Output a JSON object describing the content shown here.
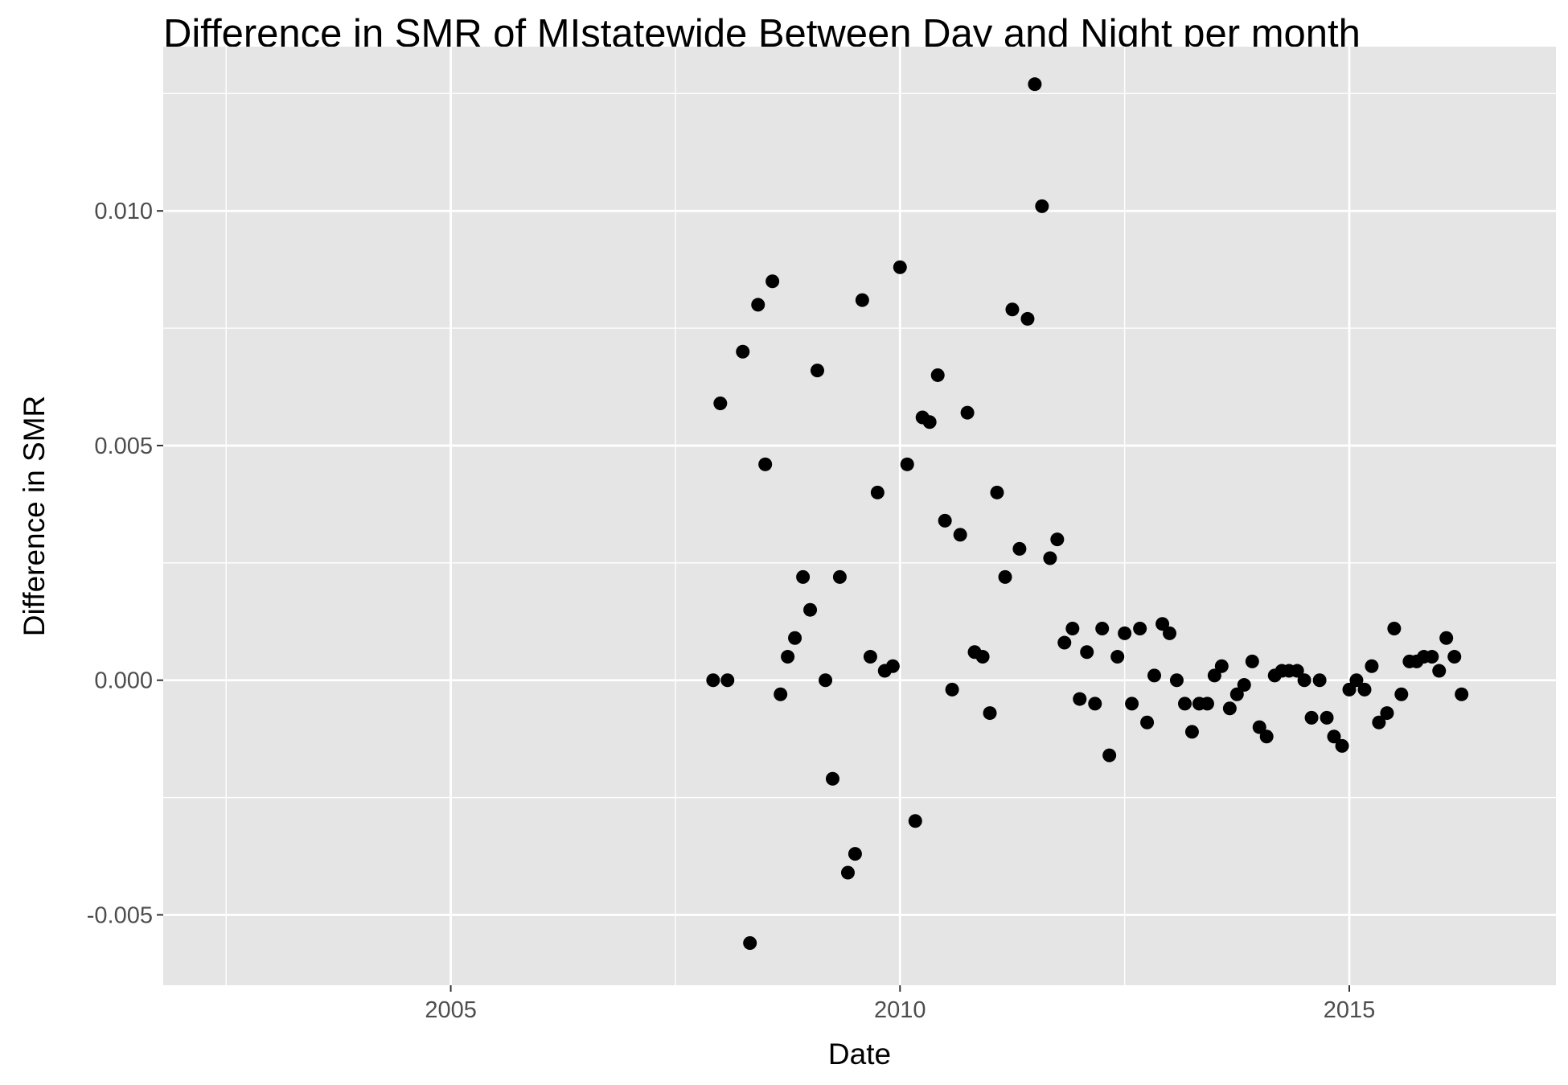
{
  "chart_data": {
    "type": "scatter",
    "title": "Difference in SMR of MIstatewide Between Day and Night per month",
    "xlabel": "Date",
    "ylabel": "Difference in SMR",
    "xlim": [
      2001.8,
      2017.3
    ],
    "ylim": [
      -0.0065,
      0.0135
    ],
    "x_ticks": [
      2005,
      2010,
      2015
    ],
    "x_tick_labels": [
      "2005",
      "2010",
      "2015"
    ],
    "y_ticks": [
      -0.005,
      0.0,
      0.005,
      0.01
    ],
    "y_tick_labels": [
      "-0.005",
      "0.000",
      "0.005",
      "0.010"
    ],
    "grid": true,
    "background": "#e5e5e5",
    "point_color": "#000000",
    "points": [
      {
        "x": 2007.92,
        "y": 0.0
      },
      {
        "x": 2008.0,
        "y": 0.0059
      },
      {
        "x": 2008.08,
        "y": 0.0
      },
      {
        "x": 2008.25,
        "y": 0.007
      },
      {
        "x": 2008.33,
        "y": -0.0056
      },
      {
        "x": 2008.42,
        "y": 0.008
      },
      {
        "x": 2008.5,
        "y": 0.0046
      },
      {
        "x": 2008.58,
        "y": 0.0085
      },
      {
        "x": 2008.67,
        "y": -0.0003
      },
      {
        "x": 2008.75,
        "y": 0.0005
      },
      {
        "x": 2008.83,
        "y": 0.0009
      },
      {
        "x": 2008.92,
        "y": 0.0022
      },
      {
        "x": 2009.0,
        "y": 0.0015
      },
      {
        "x": 2009.08,
        "y": 0.0066
      },
      {
        "x": 2009.17,
        "y": 0.0
      },
      {
        "x": 2009.25,
        "y": -0.0021
      },
      {
        "x": 2009.33,
        "y": 0.0022
      },
      {
        "x": 2009.42,
        "y": -0.0041
      },
      {
        "x": 2009.5,
        "y": -0.0037
      },
      {
        "x": 2009.58,
        "y": 0.0081
      },
      {
        "x": 2009.67,
        "y": 0.0005
      },
      {
        "x": 2009.75,
        "y": 0.004
      },
      {
        "x": 2009.83,
        "y": 0.0002
      },
      {
        "x": 2009.92,
        "y": 0.0003
      },
      {
        "x": 2010.0,
        "y": 0.0088
      },
      {
        "x": 2010.08,
        "y": 0.0046
      },
      {
        "x": 2010.17,
        "y": -0.003
      },
      {
        "x": 2010.25,
        "y": 0.0056
      },
      {
        "x": 2010.33,
        "y": 0.0055
      },
      {
        "x": 2010.42,
        "y": 0.0065
      },
      {
        "x": 2010.5,
        "y": 0.0034
      },
      {
        "x": 2010.58,
        "y": -0.0002
      },
      {
        "x": 2010.67,
        "y": 0.0031
      },
      {
        "x": 2010.75,
        "y": 0.0057
      },
      {
        "x": 2010.83,
        "y": 0.0006
      },
      {
        "x": 2010.92,
        "y": 0.0005
      },
      {
        "x": 2011.0,
        "y": -0.0007
      },
      {
        "x": 2011.08,
        "y": 0.004
      },
      {
        "x": 2011.17,
        "y": 0.0022
      },
      {
        "x": 2011.25,
        "y": 0.0079
      },
      {
        "x": 2011.33,
        "y": 0.0028
      },
      {
        "x": 2011.42,
        "y": 0.0077
      },
      {
        "x": 2011.5,
        "y": 0.0127
      },
      {
        "x": 2011.58,
        "y": 0.0101
      },
      {
        "x": 2011.67,
        "y": 0.0026
      },
      {
        "x": 2011.75,
        "y": 0.003
      },
      {
        "x": 2011.83,
        "y": 0.0008
      },
      {
        "x": 2011.92,
        "y": 0.0011
      },
      {
        "x": 2012.0,
        "y": -0.0004
      },
      {
        "x": 2012.08,
        "y": 0.0006
      },
      {
        "x": 2012.17,
        "y": -0.0005
      },
      {
        "x": 2012.25,
        "y": 0.0011
      },
      {
        "x": 2012.33,
        "y": -0.0016
      },
      {
        "x": 2012.42,
        "y": 0.0005
      },
      {
        "x": 2012.5,
        "y": 0.001
      },
      {
        "x": 2012.58,
        "y": -0.0005
      },
      {
        "x": 2012.67,
        "y": 0.0011
      },
      {
        "x": 2012.75,
        "y": -0.0009
      },
      {
        "x": 2012.83,
        "y": 0.0001
      },
      {
        "x": 2012.92,
        "y": 0.0012
      },
      {
        "x": 2013.0,
        "y": 0.001
      },
      {
        "x": 2013.08,
        "y": 0.0
      },
      {
        "x": 2013.17,
        "y": -0.0005
      },
      {
        "x": 2013.25,
        "y": -0.0011
      },
      {
        "x": 2013.33,
        "y": -0.0005
      },
      {
        "x": 2013.42,
        "y": -0.0005
      },
      {
        "x": 2013.5,
        "y": 0.0001
      },
      {
        "x": 2013.58,
        "y": 0.0003
      },
      {
        "x": 2013.67,
        "y": -0.0006
      },
      {
        "x": 2013.75,
        "y": -0.0003
      },
      {
        "x": 2013.83,
        "y": -0.0001
      },
      {
        "x": 2013.92,
        "y": 0.0004
      },
      {
        "x": 2014.0,
        "y": -0.001
      },
      {
        "x": 2014.08,
        "y": -0.0012
      },
      {
        "x": 2014.17,
        "y": 0.0001
      },
      {
        "x": 2014.25,
        "y": 0.0002
      },
      {
        "x": 2014.33,
        "y": 0.0002
      },
      {
        "x": 2014.42,
        "y": 0.0002
      },
      {
        "x": 2014.5,
        "y": 0.0
      },
      {
        "x": 2014.58,
        "y": -0.0008
      },
      {
        "x": 2014.67,
        "y": 0.0
      },
      {
        "x": 2014.75,
        "y": -0.0008
      },
      {
        "x": 2014.83,
        "y": -0.0012
      },
      {
        "x": 2014.92,
        "y": -0.0014
      },
      {
        "x": 2015.0,
        "y": -0.0002
      },
      {
        "x": 2015.08,
        "y": 0.0
      },
      {
        "x": 2015.17,
        "y": -0.0002
      },
      {
        "x": 2015.25,
        "y": 0.0003
      },
      {
        "x": 2015.33,
        "y": -0.0009
      },
      {
        "x": 2015.42,
        "y": -0.0007
      },
      {
        "x": 2015.5,
        "y": 0.0011
      },
      {
        "x": 2015.58,
        "y": -0.0003
      },
      {
        "x": 2015.67,
        "y": 0.0004
      },
      {
        "x": 2015.75,
        "y": 0.0004
      },
      {
        "x": 2015.83,
        "y": 0.0005
      },
      {
        "x": 2015.92,
        "y": 0.0005
      },
      {
        "x": 2016.0,
        "y": 0.0002
      },
      {
        "x": 2016.08,
        "y": 0.0009
      },
      {
        "x": 2016.17,
        "y": 0.0005
      },
      {
        "x": 2016.25,
        "y": -0.0003
      }
    ]
  }
}
